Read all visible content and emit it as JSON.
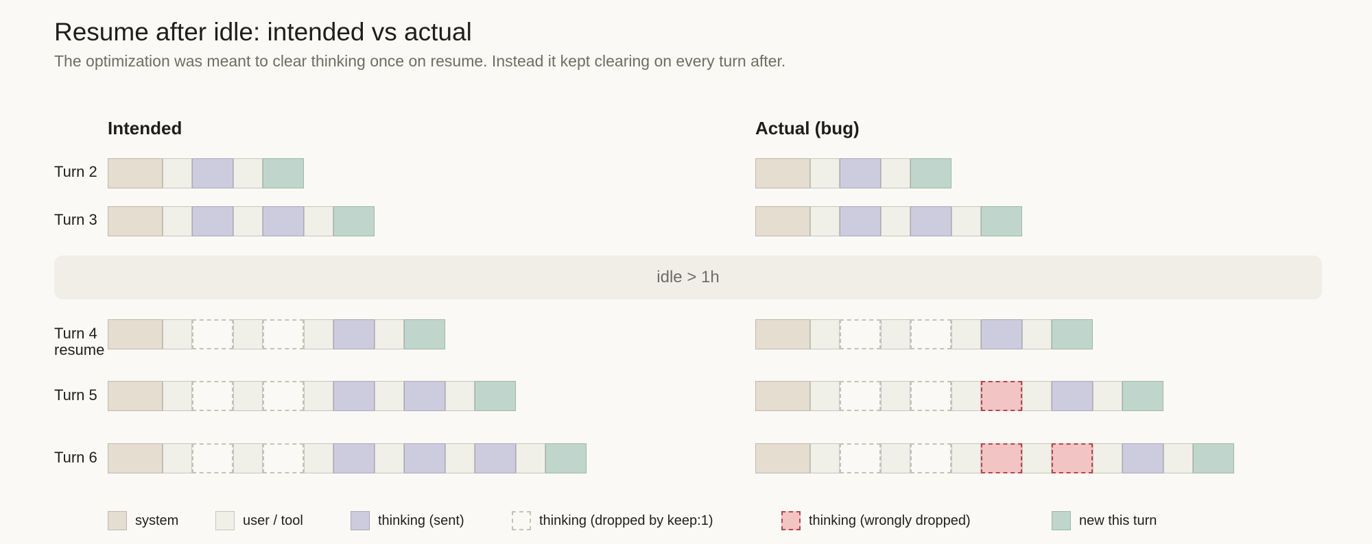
{
  "title": "Resume after idle: intended vs actual",
  "subtitle": "The optimization was meant to clear thinking once on resume. Instead it kept clearing on every turn after.",
  "idle_label": "idle > 1h",
  "panels": [
    {
      "heading": "Intended",
      "rows": [
        {
          "label": "Turn 2",
          "blocks": [
            "system",
            "user",
            "sent",
            "user",
            "newturn"
          ]
        },
        {
          "label": "Turn 3",
          "blocks": [
            "system",
            "user",
            "sent",
            "user",
            "sent",
            "user",
            "newturn"
          ]
        },
        {
          "label": "Turn 4\nresume",
          "blocks": [
            "system",
            "user",
            "dropped",
            "user",
            "dropped",
            "user",
            "sent",
            "user",
            "newturn"
          ]
        },
        {
          "label": "Turn 5",
          "blocks": [
            "system",
            "user",
            "dropped",
            "user",
            "dropped",
            "user",
            "sent",
            "user",
            "sent",
            "user",
            "newturn"
          ]
        },
        {
          "label": "Turn 6",
          "blocks": [
            "system",
            "user",
            "dropped",
            "user",
            "dropped",
            "user",
            "sent",
            "user",
            "sent",
            "user",
            "sent",
            "user",
            "newturn"
          ]
        }
      ]
    },
    {
      "heading": "Actual (bug)",
      "rows": [
        {
          "label": "",
          "blocks": [
            "system",
            "user",
            "sent",
            "user",
            "newturn"
          ]
        },
        {
          "label": "",
          "blocks": [
            "system",
            "user",
            "sent",
            "user",
            "sent",
            "user",
            "newturn"
          ]
        },
        {
          "label": "",
          "blocks": [
            "system",
            "user",
            "dropped",
            "user",
            "dropped",
            "user",
            "sent",
            "user",
            "newturn"
          ]
        },
        {
          "label": "",
          "blocks": [
            "system",
            "user",
            "dropped",
            "user",
            "dropped",
            "user",
            "wrong",
            "user",
            "sent",
            "user",
            "newturn"
          ]
        },
        {
          "label": "",
          "blocks": [
            "system",
            "user",
            "dropped",
            "user",
            "dropped",
            "user",
            "wrong",
            "user",
            "wrong",
            "user",
            "sent",
            "user",
            "newturn"
          ]
        }
      ]
    }
  ],
  "legend": [
    {
      "key": "system",
      "label": "system"
    },
    {
      "key": "user",
      "label": "user / tool"
    },
    {
      "key": "sent",
      "label": "thinking (sent)"
    },
    {
      "key": "dropped",
      "label": "thinking (dropped by keep:1)"
    },
    {
      "key": "wrong",
      "label": "thinking (wrongly dropped)"
    },
    {
      "key": "newturn",
      "label": "new this turn"
    }
  ],
  "colors": {
    "system": "#e5ddd0",
    "user_tool": "#f0efe8",
    "thinking_sent": "#cdcbde",
    "thinking_dropped_border": "#c3c1ba",
    "thinking_wrongly_dropped": "#f2c4c4",
    "thinking_wrongly_dropped_border": "#b5444b",
    "new_this_turn": "#c0d6cd"
  }
}
